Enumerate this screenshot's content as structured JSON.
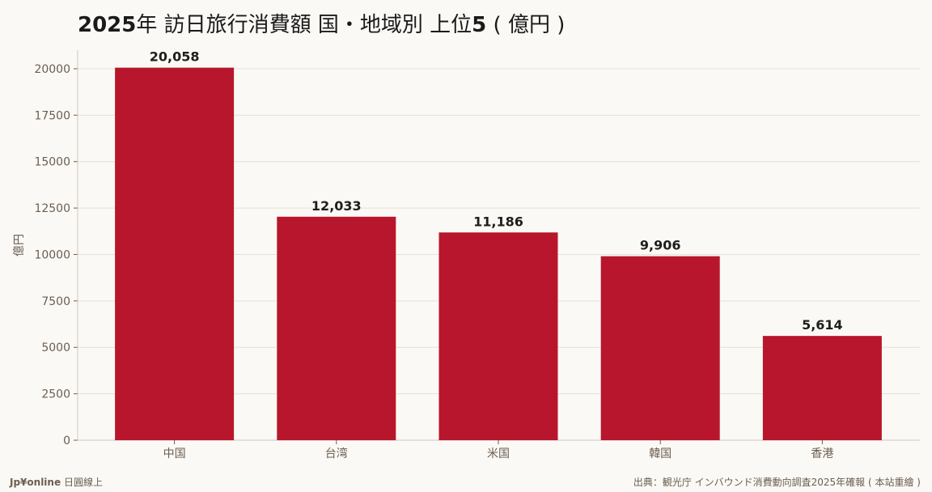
{
  "title_bold_prefix": "2025",
  "title_rest": "年 訪日旅行消費額 国・地域別 上位",
  "title_bold_suffix": "5",
  "title_unit": " ( 億円 )",
  "brand_name": "Jp¥online",
  "brand_tagline": "日圓線上",
  "source": "出典：観光庁 インバウンド消費動向調査2025年確報 ( 本站重繪 )",
  "colors": {
    "bar": "#b8162c",
    "grid": "#e6e1d8",
    "axis_text": "#6b5e51",
    "label_text": "#1e1e1e"
  },
  "chart_data": {
    "type": "bar",
    "categories": [
      "中国",
      "台湾",
      "米国",
      "韓国",
      "香港"
    ],
    "values": [
      20058,
      12033,
      11186,
      9906,
      5614
    ],
    "value_labels": [
      "20,058",
      "12,033",
      "11,186",
      "9,906",
      "5,614"
    ],
    "ylabel": "億円",
    "xlabel": "",
    "ylim": [
      0,
      21000
    ],
    "yticks": [
      0,
      2500,
      5000,
      7500,
      10000,
      12500,
      15000,
      17500,
      20000
    ],
    "grid": true,
    "legend": "none"
  }
}
